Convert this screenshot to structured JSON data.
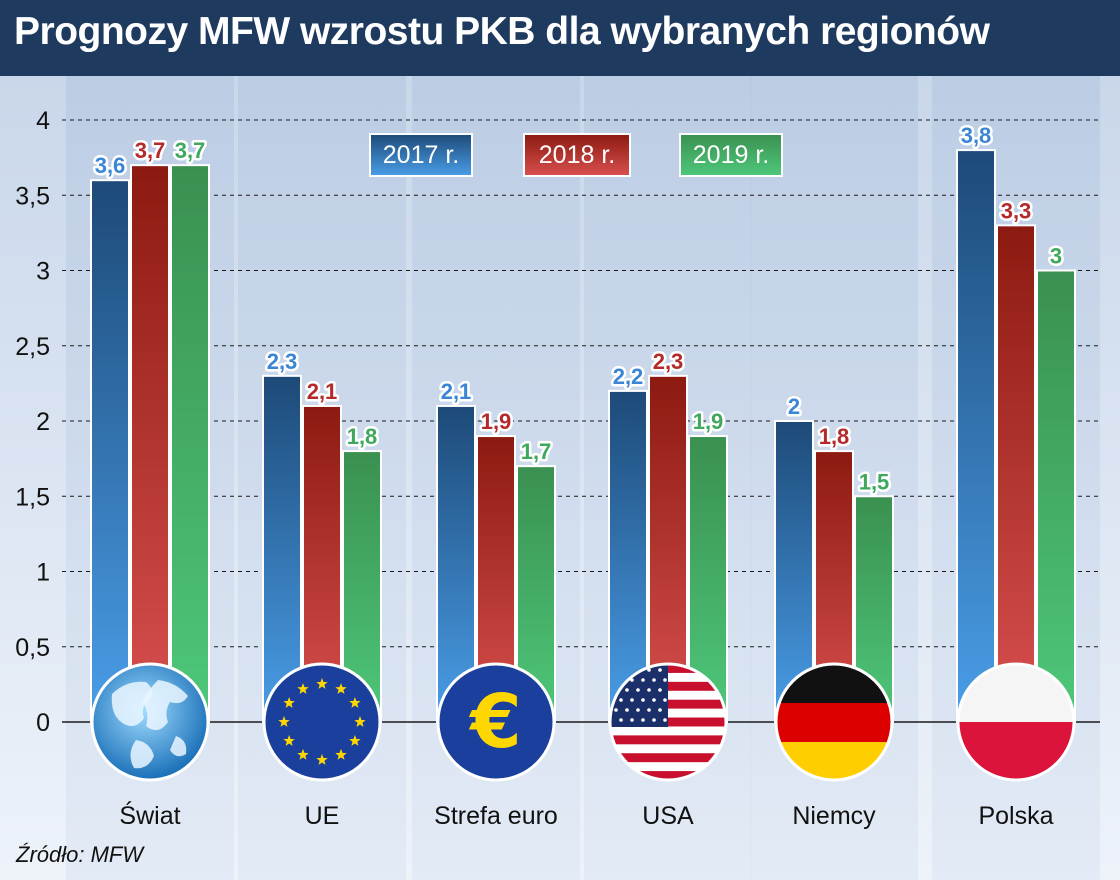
{
  "title": "Prognozy MFW wzrostu PKB dla wybranych regionów",
  "source": "Źródło: MFW",
  "colors": {
    "title_bg": "#1f3a5f",
    "series_2017": "#3a86d4",
    "series_2018": "#b42a2a",
    "series_2019": "#3fa85c"
  },
  "chart_data": {
    "type": "bar",
    "categories": [
      "Świat",
      "UE",
      "Strefa euro",
      "USA",
      "Niemcy",
      "Polska"
    ],
    "category_icons": [
      "globe-icon",
      "eu-flag-icon",
      "euro-sign-icon",
      "usa-flag-icon",
      "germany-flag-icon",
      "poland-flag-icon"
    ],
    "series": [
      {
        "name": "2017 r.",
        "values": [
          3.6,
          2.3,
          2.1,
          2.2,
          2.0,
          3.8
        ],
        "labels": [
          "3,6",
          "2,3",
          "2,1",
          "2,2",
          "2",
          "3,8"
        ]
      },
      {
        "name": "2018 r.",
        "values": [
          3.7,
          2.1,
          1.9,
          2.3,
          1.8,
          3.3
        ],
        "labels": [
          "3,7",
          "2,1",
          "1,9",
          "2,3",
          "1,8",
          "3,3"
        ]
      },
      {
        "name": "2019 r.",
        "values": [
          3.7,
          1.8,
          1.7,
          1.9,
          1.5,
          3.0
        ],
        "labels": [
          "3,7",
          "1,8",
          "1,7",
          "1,9",
          "1,5",
          "3"
        ]
      }
    ],
    "ylim": [
      0,
      4
    ],
    "yticks": [
      "0",
      "0,5",
      "1",
      "1,5",
      "2",
      "2,5",
      "3",
      "3,5",
      "4"
    ],
    "grid": true,
    "legend_position": "top-center"
  }
}
